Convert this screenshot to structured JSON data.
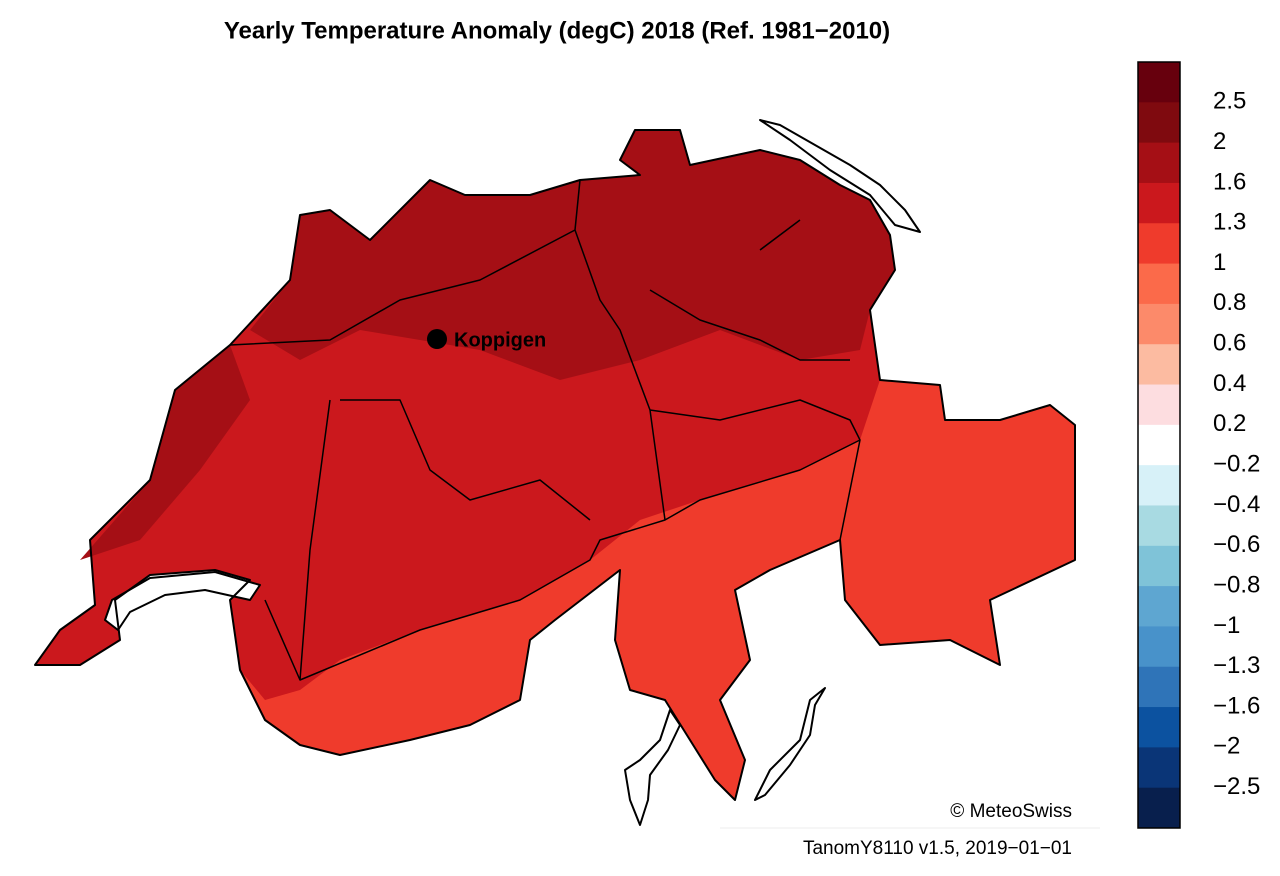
{
  "title": "Yearly Temperature Anomaly (degC) 2018  (Ref. 1981−2010)",
  "place": "Koppigen",
  "copyright": "© MeteoSwiss",
  "footer": "TanomY8110 v1.5, 2019−01−01",
  "colorbar": {
    "colors": [
      "#67000d",
      "#7f0a0f",
      "#a50f15",
      "#cb181d",
      "#ef3b2c",
      "#fb6a4a",
      "#fc8a6a",
      "#fcbba1",
      "#fddde0",
      "#ffffff",
      "#d7f1f8",
      "#a8dae2",
      "#7fc3d8",
      "#5ea6d1",
      "#4892ca",
      "#2f74b8",
      "#0c52a0",
      "#0a3577",
      "#081f4d"
    ],
    "labels": [
      "2.5",
      "2",
      "1.6",
      "1.3",
      "1",
      "0.8",
      "0.6",
      "0.4",
      "0.2",
      "−0.2",
      "−0.4",
      "−0.6",
      "−0.8",
      "−1",
      "−1.3",
      "−1.6",
      "−2",
      "−2.5"
    ]
  }
}
